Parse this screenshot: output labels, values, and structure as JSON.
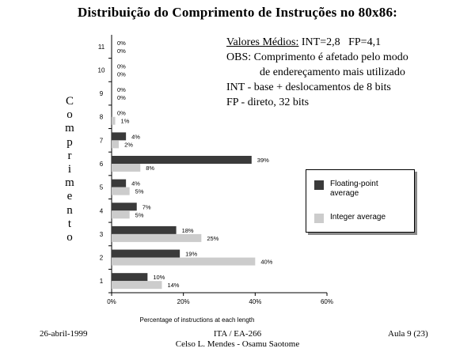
{
  "slide": {
    "title": "Distribuição do Comprimento de Instruções no 80x86:",
    "notes": {
      "line1_label": "Valores Médios:",
      "line1_values": "INT=2,8   FP=4,1",
      "line2": "OBS: Comprimento é afetado pelo modo",
      "line3": "de endereçamento mais utilizado",
      "line4": "INT - base + deslocamentos de 8 bits",
      "line5": "FP - direto, 32 bits"
    },
    "vertical_label": "Comprimento",
    "footer": {
      "date": "26-abril-1999",
      "course": "ITA / EA-266",
      "authors": "Celso L. Mendes - Osamu Saotome",
      "lecture": "Aula 9 (23)"
    }
  },
  "colors": {
    "floating_point": "#3a3a3a",
    "integer": "#cccccc",
    "background": "#ffffff"
  },
  "chart_data": {
    "type": "bar",
    "orientation": "horizontal",
    "categories": [
      "1",
      "2",
      "3",
      "4",
      "5",
      "6",
      "7",
      "8",
      "9",
      "10",
      "11"
    ],
    "series": [
      {
        "name": "Floating-point average",
        "values": [
          10,
          19,
          18,
          7,
          4,
          39,
          4,
          0,
          0,
          0,
          0
        ],
        "labels": [
          "10%",
          "19%",
          "18%",
          "7%",
          "4%",
          "39%",
          "4%",
          "0%",
          "0%",
          "0%",
          "0%"
        ]
      },
      {
        "name": "Integer average",
        "values": [
          14,
          40,
          25,
          5,
          5,
          8,
          2,
          1,
          0,
          0,
          0
        ],
        "labels": [
          "14%",
          "40%",
          "25%",
          "5%",
          "5%",
          "8%",
          "2%",
          "1%",
          "0%",
          "0%",
          "0%"
        ]
      }
    ],
    "xlabel": "Percentage of instructions at each length",
    "xlim": [
      0,
      60
    ],
    "xticks": [
      0,
      20,
      40,
      60
    ],
    "xtick_labels": [
      "0%",
      "20%",
      "40%",
      "60%"
    ],
    "grid": false,
    "legend": "right"
  }
}
